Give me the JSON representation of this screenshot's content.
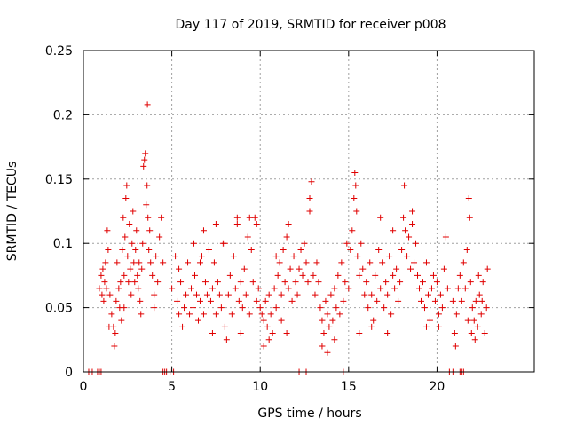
{
  "chart_data": {
    "type": "scatter",
    "title": "Day 117 of 2019, SRMTID for receiver p008",
    "xlabel": "GPS time / hours",
    "ylabel": "SRMTID / TECUs",
    "xlim": [
      0,
      25.5
    ],
    "ylim": [
      0,
      0.25
    ],
    "grid": true,
    "marker": "+",
    "color": "#e00000",
    "xticks": [
      0,
      5,
      10,
      15,
      20
    ],
    "xtick_labels": [
      "0",
      "5",
      "10",
      "15",
      "20"
    ],
    "yticks": [
      0,
      0.05,
      0.1,
      0.15,
      0.2,
      0.25
    ],
    "ytick_labels": [
      "0",
      "0.05",
      "0.1",
      "0.15",
      "0.2",
      "0.25"
    ],
    "series": [
      {
        "name": "SRMTID",
        "points": [
          [
            0.3,
            0
          ],
          [
            0.5,
            0
          ],
          [
            0.8,
            0
          ],
          [
            0.9,
            0
          ],
          [
            1.0,
            0
          ],
          [
            4.5,
            0
          ],
          [
            4.6,
            0
          ],
          [
            4.7,
            0
          ],
          [
            4.9,
            0
          ],
          [
            5.1,
            0
          ],
          [
            12.2,
            0
          ],
          [
            12.6,
            0
          ],
          [
            14.7,
            0
          ],
          [
            20.7,
            0
          ],
          [
            20.9,
            0
          ],
          [
            21.3,
            0
          ],
          [
            21.4,
            0
          ],
          [
            21.5,
            0
          ],
          [
            0.9,
            0.065
          ],
          [
            1.0,
            0.075
          ],
          [
            1.05,
            0.06
          ],
          [
            1.1,
            0.08
          ],
          [
            1.15,
            0.055
          ],
          [
            1.2,
            0.07
          ],
          [
            1.25,
            0.085
          ],
          [
            1.3,
            0.065
          ],
          [
            1.35,
            0.11
          ],
          [
            1.4,
            0.095
          ],
          [
            1.5,
            0.06
          ],
          [
            1.6,
            0.045
          ],
          [
            1.7,
            0.035
          ],
          [
            1.75,
            0.02
          ],
          [
            1.8,
            0.03
          ],
          [
            1.85,
            0.055
          ],
          [
            1.9,
            0.085
          ],
          [
            2.0,
            0.065
          ],
          [
            2.05,
            0.05
          ],
          [
            2.1,
            0.07
          ],
          [
            2.2,
            0.095
          ],
          [
            2.25,
            0.12
          ],
          [
            2.3,
            0.075
          ],
          [
            2.35,
            0.105
          ],
          [
            2.4,
            0.135
          ],
          [
            2.45,
            0.145
          ],
          [
            2.5,
            0.09
          ],
          [
            2.55,
            0.07
          ],
          [
            2.6,
            0.115
          ],
          [
            2.65,
            0.08
          ],
          [
            2.7,
            0.06
          ],
          [
            2.75,
            0.1
          ],
          [
            2.8,
            0.125
          ],
          [
            2.85,
            0.085
          ],
          [
            2.9,
            0.07
          ],
          [
            2.95,
            0.095
          ],
          [
            3.0,
            0.11
          ],
          [
            3.05,
            0.075
          ],
          [
            3.1,
            0.065
          ],
          [
            3.15,
            0.085
          ],
          [
            3.2,
            0.055
          ],
          [
            3.3,
            0.08
          ],
          [
            3.35,
            0.1
          ],
          [
            3.4,
            0.16
          ],
          [
            3.45,
            0.165
          ],
          [
            3.5,
            0.17
          ],
          [
            3.55,
            0.13
          ],
          [
            3.6,
            0.145
          ],
          [
            3.65,
            0.12
          ],
          [
            3.62,
            0.208
          ],
          [
            3.7,
            0.095
          ],
          [
            3.75,
            0.11
          ],
          [
            3.8,
            0.085
          ],
          [
            3.9,
            0.075
          ],
          [
            4.0,
            0.06
          ],
          [
            4.1,
            0.09
          ],
          [
            4.2,
            0.07
          ],
          [
            4.3,
            0.105
          ],
          [
            4.4,
            0.12
          ],
          [
            4.5,
            0.085
          ],
          [
            2.15,
            0.04
          ],
          [
            2.3,
            0.05
          ],
          [
            3.25,
            0.045
          ],
          [
            1.45,
            0.035
          ],
          [
            4.0,
            0.05
          ],
          [
            5.0,
            0.065
          ],
          [
            5.2,
            0.09
          ],
          [
            5.3,
            0.055
          ],
          [
            5.4,
            0.045
          ],
          [
            5.5,
            0.07
          ],
          [
            5.6,
            0.035
          ],
          [
            5.7,
            0.05
          ],
          [
            5.8,
            0.06
          ],
          [
            5.9,
            0.085
          ],
          [
            6.0,
            0.045
          ],
          [
            6.1,
            0.065
          ],
          [
            6.2,
            0.05
          ],
          [
            6.3,
            0.075
          ],
          [
            6.4,
            0.06
          ],
          [
            6.5,
            0.04
          ],
          [
            6.6,
            0.055
          ],
          [
            6.7,
            0.09
          ],
          [
            6.8,
            0.045
          ],
          [
            6.9,
            0.07
          ],
          [
            7.0,
            0.06
          ],
          [
            7.1,
            0.095
          ],
          [
            7.2,
            0.055
          ],
          [
            7.3,
            0.065
          ],
          [
            7.4,
            0.085
          ],
          [
            7.5,
            0.045
          ],
          [
            7.6,
            0.07
          ],
          [
            7.7,
            0.06
          ],
          [
            7.8,
            0.05
          ],
          [
            7.9,
            0.1
          ],
          [
            8.0,
            0.035
          ],
          [
            8.1,
            0.025
          ],
          [
            8.2,
            0.06
          ],
          [
            8.3,
            0.075
          ],
          [
            8.4,
            0.045
          ],
          [
            8.5,
            0.09
          ],
          [
            8.6,
            0.065
          ],
          [
            8.7,
            0.115
          ],
          [
            8.8,
            0.055
          ],
          [
            8.9,
            0.07
          ],
          [
            9.0,
            0.05
          ],
          [
            9.1,
            0.08
          ],
          [
            9.2,
            0.06
          ],
          [
            9.3,
            0.105
          ],
          [
            9.4,
            0.045
          ],
          [
            9.5,
            0.095
          ],
          [
            9.6,
            0.07
          ],
          [
            9.7,
            0.12
          ],
          [
            9.8,
            0.055
          ],
          [
            9.9,
            0.065
          ],
          [
            6.25,
            0.1
          ],
          [
            6.8,
            0.11
          ],
          [
            7.5,
            0.115
          ],
          [
            8.0,
            0.1
          ],
          [
            8.7,
            0.12
          ],
          [
            9.4,
            0.12
          ],
          [
            9.8,
            0.115
          ],
          [
            5.4,
            0.08
          ],
          [
            6.6,
            0.085
          ],
          [
            7.3,
            0.03
          ],
          [
            8.9,
            0.03
          ],
          [
            10.0,
            0.05
          ],
          [
            10.1,
            0.045
          ],
          [
            10.2,
            0.04
          ],
          [
            10.3,
            0.055
          ],
          [
            10.4,
            0.035
          ],
          [
            10.5,
            0.06
          ],
          [
            10.6,
            0.045
          ],
          [
            10.7,
            0.03
          ],
          [
            10.8,
            0.065
          ],
          [
            10.9,
            0.05
          ],
          [
            11.0,
            0.075
          ],
          [
            11.1,
            0.085
          ],
          [
            11.2,
            0.06
          ],
          [
            11.3,
            0.095
          ],
          [
            11.4,
            0.07
          ],
          [
            11.5,
            0.105
          ],
          [
            11.6,
            0.065
          ],
          [
            11.7,
            0.08
          ],
          [
            11.8,
            0.055
          ],
          [
            11.9,
            0.09
          ],
          [
            12.0,
            0.07
          ],
          [
            12.1,
            0.06
          ],
          [
            12.2,
            0.08
          ],
          [
            12.3,
            0.095
          ],
          [
            12.4,
            0.075
          ],
          [
            12.5,
            0.1
          ],
          [
            12.6,
            0.085
          ],
          [
            12.7,
            0.07
          ],
          [
            12.8,
            0.125
          ],
          [
            12.9,
            0.148
          ],
          [
            13.0,
            0.075
          ],
          [
            13.1,
            0.06
          ],
          [
            13.2,
            0.085
          ],
          [
            13.3,
            0.07
          ],
          [
            13.4,
            0.05
          ],
          [
            13.5,
            0.04
          ],
          [
            13.6,
            0.03
          ],
          [
            13.7,
            0.055
          ],
          [
            13.8,
            0.045
          ],
          [
            13.9,
            0.035
          ],
          [
            14.0,
            0.06
          ],
          [
            14.1,
            0.04
          ],
          [
            14.2,
            0.065
          ],
          [
            14.3,
            0.05
          ],
          [
            14.4,
            0.075
          ],
          [
            14.5,
            0.045
          ],
          [
            14.6,
            0.085
          ],
          [
            14.7,
            0.055
          ],
          [
            14.8,
            0.07
          ],
          [
            14.9,
            0.1
          ],
          [
            10.2,
            0.02
          ],
          [
            10.5,
            0.025
          ],
          [
            11.2,
            0.04
          ],
          [
            11.5,
            0.03
          ],
          [
            13.5,
            0.02
          ],
          [
            13.8,
            0.015
          ],
          [
            14.2,
            0.025
          ],
          [
            11.6,
            0.115
          ],
          [
            12.8,
            0.135
          ],
          [
            10.9,
            0.09
          ],
          [
            15.0,
            0.065
          ],
          [
            15.1,
            0.095
          ],
          [
            15.2,
            0.11
          ],
          [
            15.3,
            0.135
          ],
          [
            15.35,
            0.155
          ],
          [
            15.4,
            0.145
          ],
          [
            15.45,
            0.125
          ],
          [
            15.5,
            0.09
          ],
          [
            15.6,
            0.075
          ],
          [
            15.7,
            0.1
          ],
          [
            15.8,
            0.08
          ],
          [
            15.9,
            0.06
          ],
          [
            16.0,
            0.07
          ],
          [
            16.1,
            0.05
          ],
          [
            16.2,
            0.085
          ],
          [
            16.3,
            0.06
          ],
          [
            16.4,
            0.04
          ],
          [
            16.5,
            0.075
          ],
          [
            16.6,
            0.055
          ],
          [
            16.7,
            0.095
          ],
          [
            16.8,
            0.065
          ],
          [
            16.9,
            0.085
          ],
          [
            17.0,
            0.05
          ],
          [
            17.1,
            0.07
          ],
          [
            17.2,
            0.06
          ],
          [
            17.3,
            0.09
          ],
          [
            17.4,
            0.045
          ],
          [
            17.5,
            0.075
          ],
          [
            17.6,
            0.065
          ],
          [
            17.7,
            0.08
          ],
          [
            17.8,
            0.055
          ],
          [
            17.9,
            0.07
          ],
          [
            18.0,
            0.095
          ],
          [
            18.1,
            0.12
          ],
          [
            18.15,
            0.145
          ],
          [
            18.2,
            0.11
          ],
          [
            18.3,
            0.09
          ],
          [
            18.4,
            0.105
          ],
          [
            18.5,
            0.08
          ],
          [
            18.6,
            0.115
          ],
          [
            18.7,
            0.085
          ],
          [
            18.8,
            0.1
          ],
          [
            18.9,
            0.075
          ],
          [
            19.0,
            0.065
          ],
          [
            19.1,
            0.055
          ],
          [
            19.2,
            0.07
          ],
          [
            19.3,
            0.05
          ],
          [
            19.4,
            0.085
          ],
          [
            19.5,
            0.06
          ],
          [
            19.6,
            0.04
          ],
          [
            19.7,
            0.065
          ],
          [
            19.8,
            0.075
          ],
          [
            19.9,
            0.055
          ],
          [
            20.0,
            0.07
          ],
          [
            20.1,
            0.045
          ],
          [
            20.2,
            0.06
          ],
          [
            20.3,
            0.05
          ],
          [
            20.4,
            0.08
          ],
          [
            20.5,
            0.105
          ],
          [
            20.6,
            0.065
          ],
          [
            16.3,
            0.035
          ],
          [
            17.2,
            0.03
          ],
          [
            19.4,
            0.035
          ],
          [
            20.1,
            0.035
          ],
          [
            15.6,
            0.03
          ],
          [
            16.8,
            0.12
          ],
          [
            18.6,
            0.125
          ],
          [
            17.5,
            0.11
          ],
          [
            20.9,
            0.055
          ],
          [
            21.0,
            0.03
          ],
          [
            21.05,
            0.02
          ],
          [
            21.1,
            0.045
          ],
          [
            21.2,
            0.065
          ],
          [
            21.3,
            0.075
          ],
          [
            21.4,
            0.055
          ],
          [
            21.5,
            0.085
          ],
          [
            21.6,
            0.065
          ],
          [
            21.7,
            0.095
          ],
          [
            21.8,
            0.135
          ],
          [
            21.85,
            0.12
          ],
          [
            21.9,
            0.07
          ],
          [
            22.0,
            0.05
          ],
          [
            22.1,
            0.04
          ],
          [
            22.2,
            0.055
          ],
          [
            22.3,
            0.035
          ],
          [
            22.4,
            0.06
          ],
          [
            22.5,
            0.045
          ],
          [
            22.6,
            0.07
          ],
          [
            22.7,
            0.03
          ],
          [
            22.8,
            0.05
          ],
          [
            22.85,
            0.08
          ],
          [
            21.75,
            0.04
          ],
          [
            22.15,
            0.025
          ],
          [
            22.35,
            0.075
          ],
          [
            21.95,
            0.03
          ],
          [
            22.55,
            0.055
          ]
        ]
      }
    ]
  }
}
